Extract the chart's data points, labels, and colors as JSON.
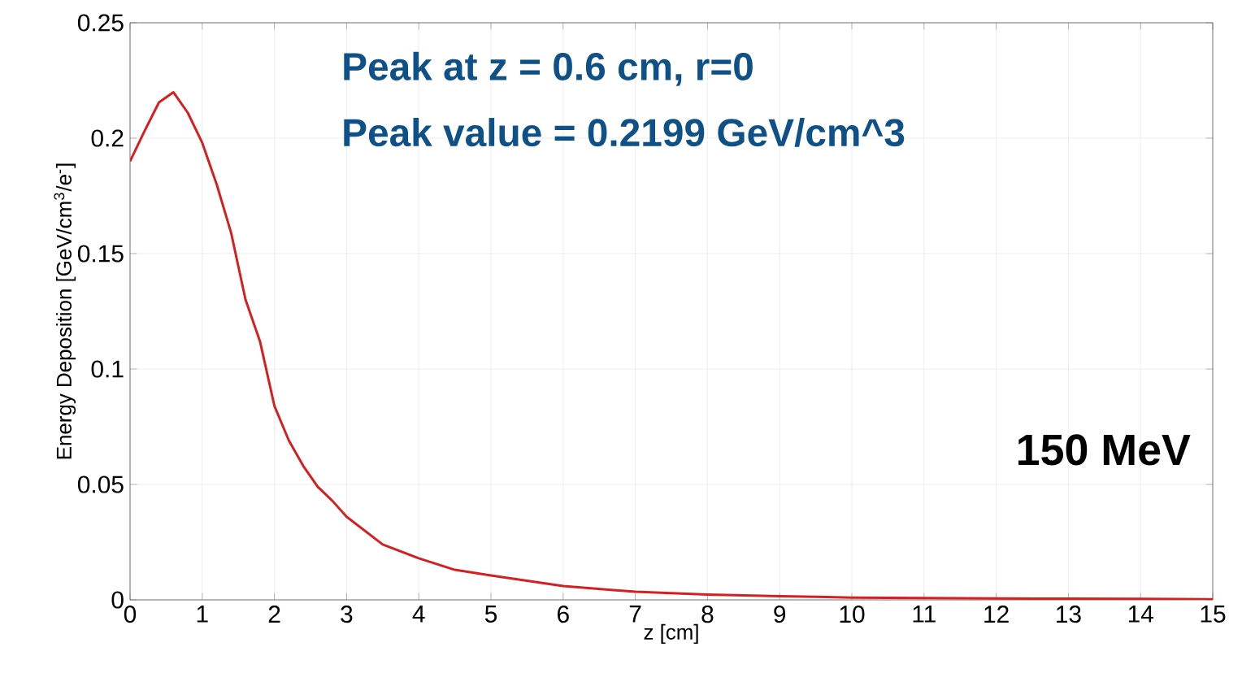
{
  "chart_data": {
    "type": "line",
    "xlabel": "z [cm]",
    "ylabel": "Energy Deposition [GeV/cm$^{3}$/e$^{-}$]",
    "annotations": [
      "Peak at z = 0.6 cm, r=0",
      "Peak value = 0.2199 GeV/cm^3",
      "150 MeV"
    ],
    "series": [
      {
        "color": "#d42020",
        "x": [
          0,
          0.2,
          0.4,
          0.6,
          0.8,
          1.0,
          1.2,
          1.4,
          1.6,
          1.8,
          2.0,
          2.2,
          2.4,
          2.6,
          2.8,
          3.0,
          3.5,
          4.0,
          4.5,
          5,
          6,
          7,
          8,
          9,
          10,
          11,
          12,
          13,
          14,
          15
        ],
        "values": [
          0.19,
          0.203,
          0.2155,
          0.2199,
          0.211,
          0.198,
          0.18,
          0.159,
          0.13,
          0.112,
          0.084,
          0.069,
          0.058,
          0.049,
          0.043,
          0.036,
          0.024,
          0.018,
          0.013,
          0.0106,
          0.006,
          0.0035,
          0.0023,
          0.0016,
          0.001,
          0.0008,
          0.0006,
          0.0005,
          0.0004,
          0.0003
        ]
      }
    ],
    "xlim": [
      0,
      15
    ],
    "ylim": [
      0,
      0.25
    ],
    "xticks": [
      0,
      1,
      2,
      3,
      4,
      5,
      6,
      7,
      8,
      9,
      10,
      11,
      12,
      13,
      14,
      15
    ],
    "yticks": [
      0,
      0.05,
      0.1,
      0.15,
      0.2,
      0.25
    ],
    "grid": true,
    "marker": "none",
    "line_style": "solid"
  }
}
